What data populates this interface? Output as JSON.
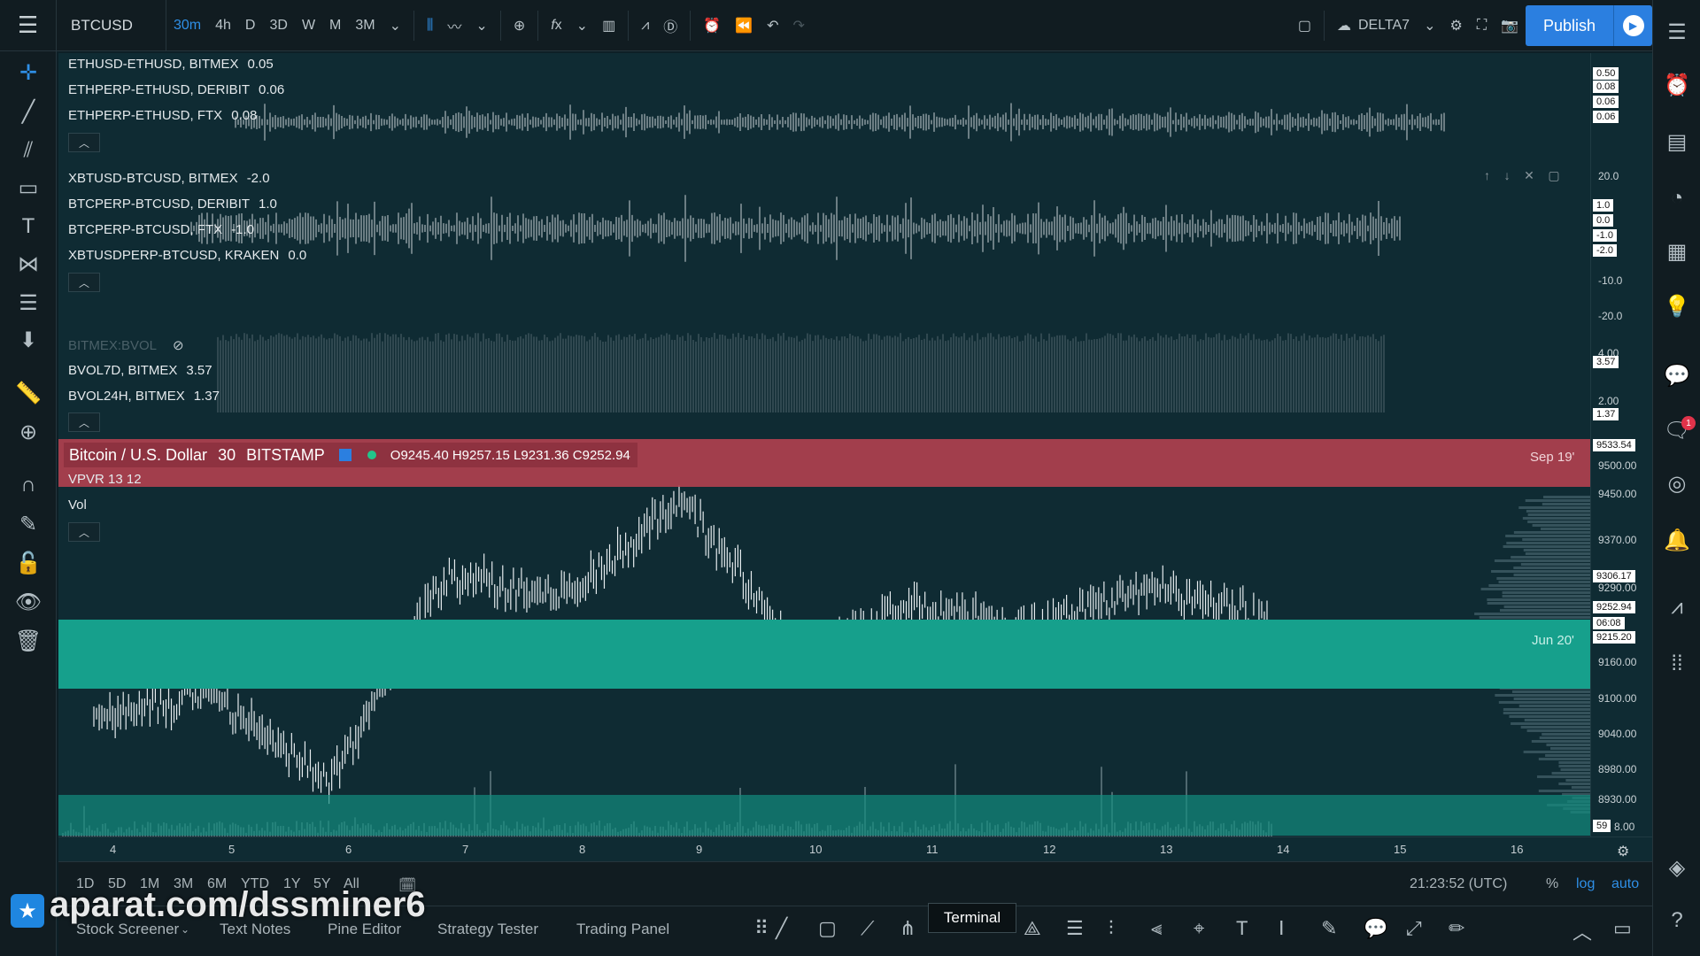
{
  "topbar": {
    "symbol": "BTCUSD",
    "intervals": [
      "30m",
      "4h",
      "D",
      "3D",
      "W",
      "M",
      "3M"
    ],
    "active_interval": "30m",
    "layout_name": "DELTA7",
    "publish_label": "Publish"
  },
  "panes": {
    "pane1": {
      "rows": [
        {
          "name": "ETHUSD-ETHUSD, BITMEX",
          "value": "0.05"
        },
        {
          "name": "ETHPERP-ETHUSD, DERIBIT",
          "value": "0.06"
        },
        {
          "name": "ETHPERP-ETHUSD, FTX",
          "value": "0.08"
        }
      ],
      "scale": [
        "0.50",
        "0.08",
        "0.06",
        "0.06"
      ]
    },
    "pane2": {
      "rows": [
        {
          "name": "XBTUSD-BTCUSD, BITMEX",
          "value": "-2.0"
        },
        {
          "name": "BTCPERP-BTCUSD, DERIBIT",
          "value": "1.0"
        },
        {
          "name": "BTCPERP-BTCUSD, FTX",
          "value": "-1.0"
        },
        {
          "name": "XBTUSDPERP-BTCUSD, KRAKEN",
          "value": "0.0"
        }
      ],
      "scale": [
        "20.0",
        "1.0",
        "0.0",
        "-1.0",
        "-2.0",
        "-10.0",
        "-20.0"
      ]
    },
    "pane3": {
      "hidden_row": "BITMEX:BVOL",
      "rows": [
        {
          "name": "BVOL7D, BITMEX",
          "value": "3.57"
        },
        {
          "name": "BVOL24H, BITMEX",
          "value": "1.37"
        }
      ],
      "scale": [
        "4.00",
        "3.57",
        "2.00",
        "1.37"
      ]
    },
    "main": {
      "title": "Bitcoin / U.S. Dollar",
      "interval": "30",
      "exchange": "BITSTAMP",
      "ohlc": "O9245.40 H9257.15 L9231.36 C9252.94",
      "indicators": [
        "VPVR 13 12",
        "Vol"
      ],
      "sep_label": "Sep 19'",
      "jun_label": "Jun 20'",
      "scale": [
        "9533.54",
        "9500.00",
        "9450.00",
        "9370.00",
        "9306.17",
        "9290.00",
        "9252.94",
        "06:08",
        "9215.20",
        "9160.00",
        "9100.00",
        "9040.00",
        "8980.00",
        "8930.00",
        "59",
        "8.00"
      ]
    }
  },
  "timeaxis": [
    "4",
    "5",
    "6",
    "7",
    "8",
    "9",
    "10",
    "11",
    "12",
    "13",
    "14",
    "15",
    "16"
  ],
  "ranges": [
    "1D",
    "5D",
    "1M",
    "3M",
    "6M",
    "YTD",
    "1Y",
    "5Y",
    "All"
  ],
  "clock": "21:23:52 (UTC)",
  "scale_opts": {
    "percent": "%",
    "log": "log",
    "auto": "auto"
  },
  "bottom_tabs": [
    "Stock Screener",
    "Text Notes",
    "Pine Editor",
    "Strategy Tester",
    "Trading Panel"
  ],
  "tooltip": "Terminal",
  "watermark": "aparat.com/dssminer6",
  "chart_data": {
    "type": "line",
    "title": "Bitcoin / U.S. Dollar",
    "x": [
      "4",
      "5",
      "6",
      "7",
      "8",
      "9",
      "10",
      "11",
      "12",
      "13",
      "14"
    ],
    "series": [
      {
        "values": [
          9100,
          9140,
          9000,
          9320,
          9290,
          9440,
          9200,
          9270,
          9240,
          9300,
          9252.94
        ]
      }
    ],
    "ylim": [
      8930,
      9533.54
    ],
    "grid": false
  },
  "notifications": "1"
}
